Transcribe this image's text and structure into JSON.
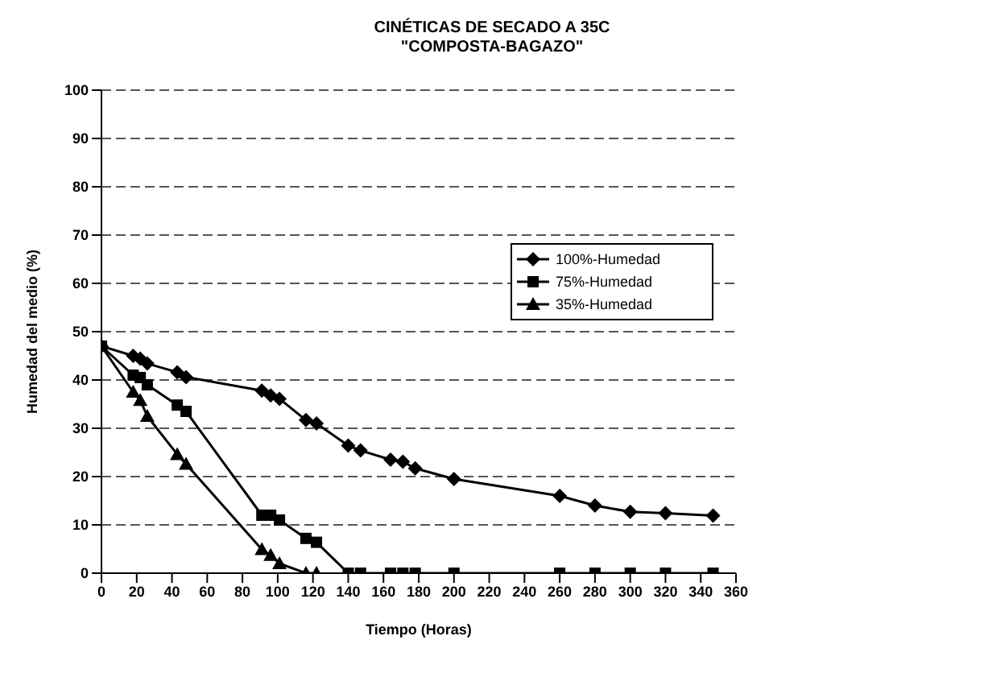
{
  "chart_data": {
    "type": "line",
    "title": "CINÉTICAS DE SECADO A 35C",
    "subtitle": "\"COMPOSTA-BAGAZO\"",
    "xlabel": "Tiempo (Horas)",
    "ylabel": "Humedad del medio (%)",
    "xlim": [
      0,
      360
    ],
    "xticks": [
      0,
      20,
      40,
      60,
      80,
      100,
      120,
      140,
      160,
      180,
      200,
      220,
      240,
      260,
      280,
      300,
      320,
      340,
      360
    ],
    "ylim": [
      0,
      100
    ],
    "yticks": [
      0,
      10,
      20,
      30,
      40,
      50,
      60,
      70,
      80,
      90,
      100
    ],
    "grid": "y",
    "legend": "top right",
    "line_style": "solid",
    "series": [
      {
        "name": "100%-Humedad",
        "color": "#000000",
        "marker": "diamond",
        "x": [
          0,
          18,
          22,
          26,
          43,
          48,
          91,
          96,
          101,
          116,
          122,
          140,
          147,
          164,
          171,
          178,
          200,
          260,
          280,
          300,
          320,
          347
        ],
        "values": [
          47,
          45,
          44.4,
          43.4,
          41.6,
          40.6,
          37.8,
          36.8,
          36.1,
          31.7,
          31,
          26.4,
          25.4,
          23.5,
          23.1,
          21.7,
          19.5,
          16,
          14,
          12.7,
          12.4,
          11.9
        ]
      },
      {
        "name": "75%-Humedad",
        "color": "#000000",
        "marker": "square",
        "x": [
          0,
          18,
          22,
          26,
          43,
          48,
          91,
          96,
          101,
          116,
          122,
          140,
          147,
          164,
          171,
          178,
          200,
          260,
          280,
          300,
          320,
          347
        ],
        "values": [
          47,
          41,
          40.5,
          39,
          34.8,
          33.5,
          12,
          12,
          11,
          7.2,
          6.4,
          0,
          0,
          0,
          0,
          0,
          0,
          0,
          0,
          0,
          0,
          0
        ]
      },
      {
        "name": "35%-Humedad",
        "color": "#000000",
        "marker": "triangle",
        "x": [
          0,
          18,
          22,
          26,
          43,
          48,
          91,
          96,
          101,
          116,
          122
        ],
        "values": [
          47,
          37.5,
          35.8,
          32.5,
          24.6,
          22.6,
          4.9,
          3.7,
          2,
          0,
          0
        ]
      }
    ]
  }
}
